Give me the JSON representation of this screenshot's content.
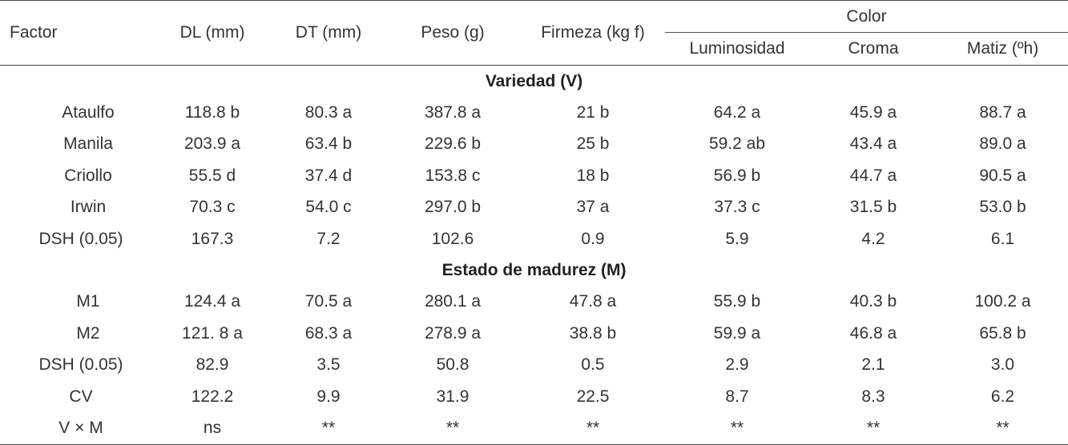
{
  "header": {
    "factor": "Factor",
    "dl": "DL (mm)",
    "dt": "DT (mm)",
    "peso": "Peso (g)",
    "firmeza": "Firmeza (kg f)",
    "color": "Color",
    "luminosidad": "Luminosidad",
    "croma": "Croma",
    "matiz": "Matiz (ºh)"
  },
  "sections": {
    "variedad": "Variedad (V)",
    "madurez": "Estado de madurez (M)"
  },
  "rows": [
    {
      "factor": "Ataulfo",
      "dl": "118.8 b",
      "dt": "80.3 a",
      "peso": "387.8 a",
      "firmeza": "21 b",
      "lum": "64.2 a",
      "croma": "45.9 a",
      "matiz": "88.7 a"
    },
    {
      "factor": "Manila",
      "dl": "203.9 a",
      "dt": "63.4 b",
      "peso": "229.6 b",
      "firmeza": "25 b",
      "lum": "59.2 ab",
      "croma": "43.4 a",
      "matiz": "89.0 a"
    },
    {
      "factor": "Criollo",
      "dl": "55.5 d",
      "dt": "37.4 d",
      "peso": "153.8 c",
      "firmeza": "18 b",
      "lum": "56.9 b",
      "croma": "44.7 a",
      "matiz": "90.5 a"
    },
    {
      "factor": "Irwin",
      "dl": "70.3 c",
      "dt": "54.0 c",
      "peso": "297.0 b",
      "firmeza": "37 a",
      "lum": "37.3 c",
      "croma": "31.5 b",
      "matiz": "53.0 b"
    },
    {
      "factor": "DSH (0.05)",
      "dl": "167.3",
      "dt": "7.2",
      "peso": "102.6",
      "firmeza": "0.9",
      "lum": "5.9",
      "croma": "4.2",
      "matiz": "6.1"
    },
    {
      "factor": "M1",
      "dl": "124.4 a",
      "dt": "70.5 a",
      "peso": "280.1 a",
      "firmeza": "47.8 a",
      "lum": "55.9 b",
      "croma": "40.3 b",
      "matiz": "100.2 a"
    },
    {
      "factor": "M2",
      "dl": "121. 8 a",
      "dt": "68.3 a",
      "peso": "278.9 a",
      "firmeza": "38.8 b",
      "lum": "59.9 a",
      "croma": "46.8 a",
      "matiz": "65.8 b"
    },
    {
      "factor": "DSH (0.05)",
      "dl": "82.9",
      "dt": "3.5",
      "peso": "50.8",
      "firmeza": "0.5",
      "lum": "2.9",
      "croma": "2.1",
      "matiz": "3.0"
    },
    {
      "factor": "CV",
      "dl": "122.2",
      "dt": "9.9",
      "peso": "31.9",
      "firmeza": "22.5",
      "lum": "8.7",
      "croma": "8.3",
      "matiz": "6.2"
    },
    {
      "factor": "V × M",
      "dl": "ns",
      "dt": "**",
      "peso": "**",
      "firmeza": "**",
      "lum": "**",
      "croma": "**",
      "matiz": "**"
    }
  ]
}
